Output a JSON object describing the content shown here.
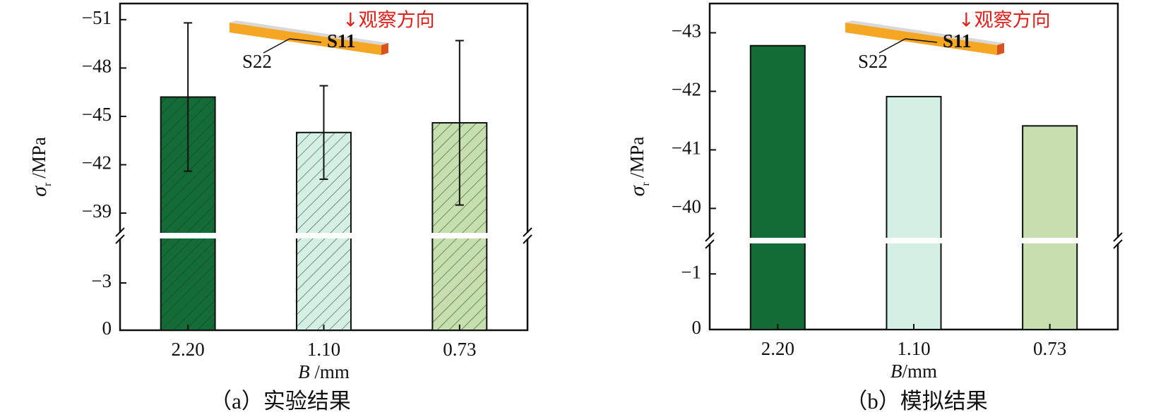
{
  "chart_data": [
    {
      "type": "bar",
      "caption": "（a）实验结果",
      "y_label": {
        "symbol": "σ",
        "subscript": "r",
        "unit": "/MPa"
      },
      "x_label": {
        "symbol": "B",
        "unit": " /mm"
      },
      "inset": {
        "direction": "↓观察方向",
        "s11": "S11",
        "s22": "S22"
      },
      "categories": [
        "2.20",
        "1.10",
        "0.73"
      ],
      "values": [
        -46.2,
        -44.0,
        -44.6
      ],
      "errors": [
        4.6,
        2.9,
        5.1
      ],
      "colors": [
        "#136b35",
        "#d4efe3",
        "#c7dfae"
      ],
      "hatch": true,
      "segments": [
        {
          "ylim": [
            0,
            -6
          ],
          "yticks": [
            0,
            {
              "value": -3,
              "label": "−3"
            }
          ]
        },
        {
          "ylim": [
            -37.6,
            -52
          ],
          "yticks": [
            {
              "value": -39,
              "label": "−39"
            },
            {
              "value": -42,
              "label": "−42"
            },
            {
              "value": -45,
              "label": "−45"
            },
            {
              "value": -48,
              "label": "−48"
            },
            {
              "value": -51,
              "label": "−51"
            }
          ]
        }
      ]
    },
    {
      "type": "bar",
      "caption": "（b）模拟结果",
      "y_label": {
        "symbol": "σ",
        "subscript": "r",
        "unit": "/MPa"
      },
      "x_label": {
        "symbol": "B",
        "unit": "/mm"
      },
      "inset": {
        "direction": "↓观察方向",
        "s11": "S11",
        "s22": "S22"
      },
      "categories": [
        "2.20",
        "1.10",
        "0.73"
      ],
      "values": [
        -42.78,
        -41.91,
        -41.41
      ],
      "colors": [
        "#136b35",
        "#d4efe3",
        "#c7dfae"
      ],
      "hatch": false,
      "segments": [
        {
          "ylim": [
            0,
            -1.6
          ],
          "yticks": [
            0,
            {
              "value": -1,
              "label": "−1"
            }
          ]
        },
        {
          "ylim": [
            -39.45,
            -43.5
          ],
          "yticks": [
            {
              "value": -40,
              "label": "−40"
            },
            {
              "value": -41,
              "label": "−41"
            },
            {
              "value": -42,
              "label": "−42"
            },
            {
              "value": -43,
              "label": "−43"
            }
          ]
        }
      ]
    }
  ]
}
